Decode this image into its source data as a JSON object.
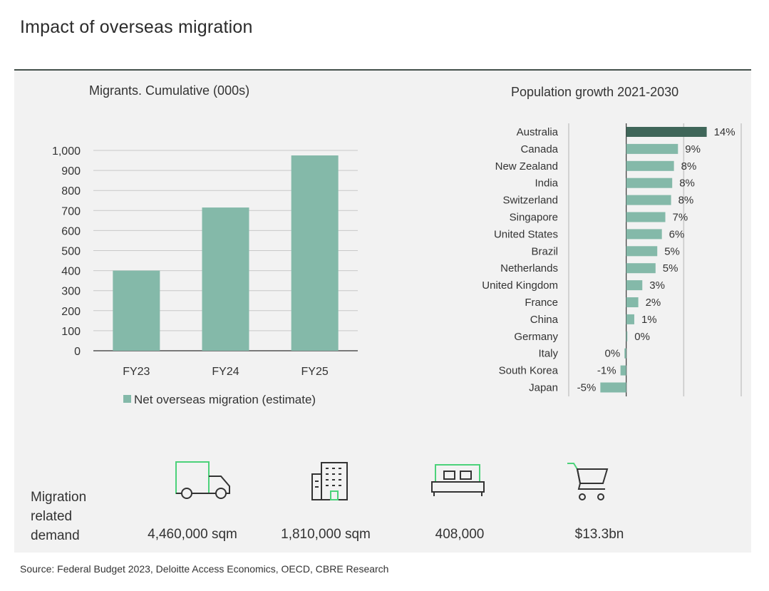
{
  "page": {
    "title": "Impact of overseas migration",
    "source": "Source: Federal Budget 2023,  Deloitte Access Economics, OECD, CBRE Research"
  },
  "colors": {
    "bar": "#84b9a9",
    "highlight": "#3f6659",
    "axis": "#333333",
    "grid": "#c8c8c8",
    "icon_accent": "#4cd27a"
  },
  "chart_data": [
    {
      "type": "bar",
      "title": "Migrants. Cumulative (000s)",
      "categories": [
        "FY23",
        "FY24",
        "FY25"
      ],
      "series": [
        {
          "name": "Net overseas migration (estimate)",
          "values": [
            400,
            715,
            975
          ]
        }
      ],
      "ylim": [
        0,
        1000
      ],
      "yticks": [
        "0",
        "100",
        "200",
        "300",
        "400",
        "500",
        "600",
        "700",
        "800",
        "900",
        "1,000"
      ],
      "grid": true,
      "legend": "bottom"
    },
    {
      "type": "bar",
      "orientation": "horizontal",
      "title": "Population growth 2021-2030",
      "categories": [
        "Australia",
        "Canada",
        "New Zealand",
        "India",
        "Switzerland",
        "Singapore",
        "United States",
        "Brazil",
        "Netherlands",
        "United Kingdom",
        "France",
        "China",
        "Germany",
        "Italy",
        "South Korea",
        "Japan"
      ],
      "values": [
        14,
        9,
        8.3,
        8,
        7.8,
        6.8,
        6.2,
        5.4,
        5.1,
        2.8,
        2.1,
        1.4,
        0.2,
        -0.3,
        -1,
        -4.5
      ],
      "labels": [
        "14%",
        "9%",
        "8%",
        "8%",
        "8%",
        "7%",
        "6%",
        "5%",
        "5%",
        "3%",
        "2%",
        "1%",
        "0%",
        "0%",
        "-1%",
        "-5%"
      ],
      "highlight": "Australia",
      "xlim": [
        -10,
        20
      ],
      "grid": true
    }
  ],
  "demand": {
    "label_lines": [
      "Migration",
      "related",
      "demand"
    ],
    "items": [
      {
        "icon": "truck-icon",
        "value": "4,460,000 sqm"
      },
      {
        "icon": "building-icon",
        "value": "1,810,000 sqm"
      },
      {
        "icon": "bed-icon",
        "value": "408,000"
      },
      {
        "icon": "shopping-cart-icon",
        "value": "$13.3bn"
      }
    ]
  }
}
